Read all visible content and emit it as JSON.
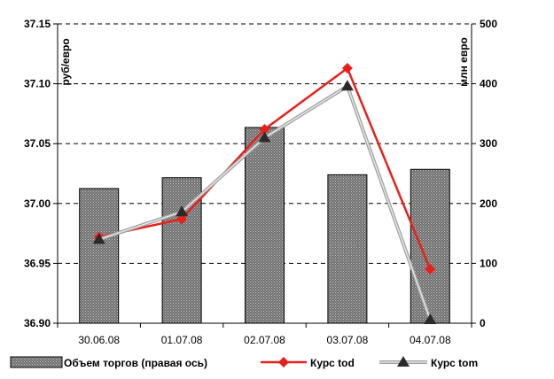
{
  "chart_data": {
    "type": "bar",
    "categories": [
      "30.06.08",
      "01.07.08",
      "02.07.08",
      "03.07.08",
      "04.07.08"
    ],
    "left_axis": {
      "label": "руб/евро",
      "min": 36.9,
      "max": 37.15,
      "ticks": [
        "36.90",
        "36.95",
        "37.00",
        "37.05",
        "37.10",
        "37.15"
      ]
    },
    "right_axis": {
      "label": "млн евро",
      "min": 0,
      "max": 500,
      "ticks": [
        "0",
        "100",
        "200",
        "300",
        "400",
        "500"
      ]
    },
    "grid": "horizontal dashed at left-axis ticks",
    "legend_position": "bottom",
    "series": [
      {
        "name": "Объем торгов (правая ось)",
        "type": "bar",
        "axis": "right",
        "values": [
          225,
          243,
          327,
          248,
          257
        ],
        "color": "#808080"
      },
      {
        "name": "Курс tod",
        "type": "line",
        "axis": "left",
        "marker": "diamond",
        "values": [
          36.972,
          36.987,
          37.062,
          37.113,
          36.945
        ],
        "color": "#e8201c"
      },
      {
        "name": "Курс tom",
        "type": "line",
        "axis": "left",
        "marker": "triangle",
        "values": [
          36.97,
          36.993,
          37.055,
          37.098,
          36.903
        ],
        "color": "#b8b8b8"
      }
    ]
  }
}
